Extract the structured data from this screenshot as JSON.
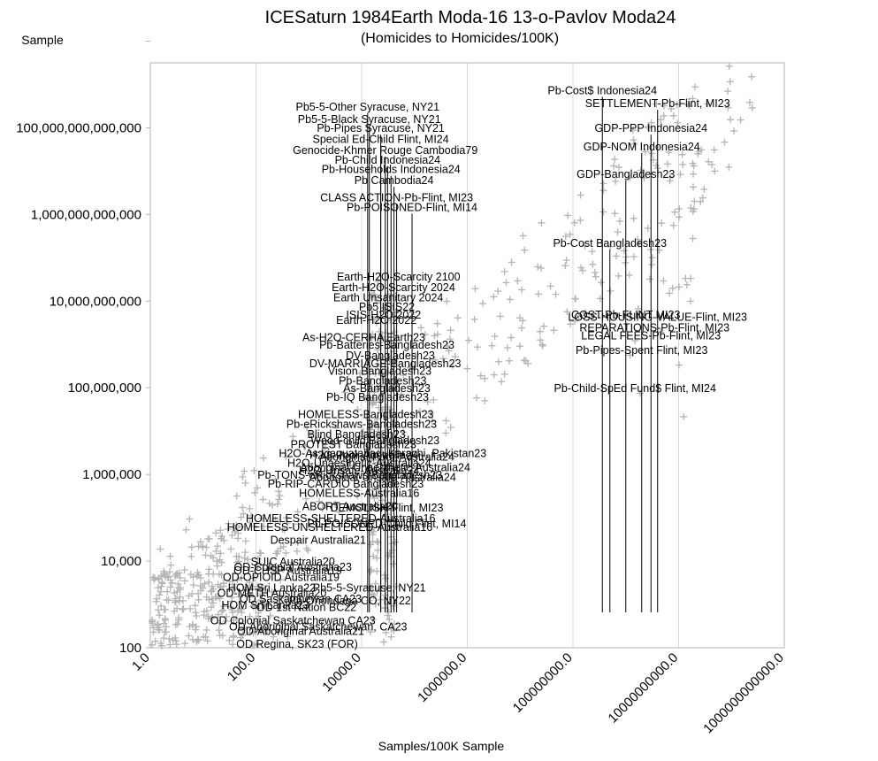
{
  "chart_data": {
    "type": "scatter",
    "title": "ICESaturn 1984Earth Moda-16 13-o-Pavlov Moda24",
    "subtitle": "(Homicides to Homicides/100K)",
    "xlabel": "Samples/100K Sample",
    "ylabel": "Sample",
    "xscale": "log",
    "yscale": "log",
    "xlim": [
      1,
      1000000000000
    ],
    "ylim": [
      100,
      10000000000000000
    ],
    "xticks": [
      1,
      100,
      10000,
      1000000,
      100000000,
      10000000000,
      1000000000000
    ],
    "xtick_labels": [
      "1.0",
      "100.0",
      "10000.0",
      "1000000.0",
      "100000000.0",
      "10000000000.0",
      "1000000000000.0"
    ],
    "yticks": [
      100,
      10000,
      1000000,
      100000000,
      10000000000,
      1000000000000,
      100000000000000,
      10000000000000000
    ],
    "ytick_labels": [
      "100",
      "10,000",
      "1,000,000",
      "100,000,000",
      "10,000,000,000",
      "1,000,000,000,000",
      "100,000,000,000,000",
      ""
    ],
    "marker": "+",
    "marker_color": "#b4b4b4",
    "grid": "vertical",
    "annotations": [
      {
        "text": "Pb5-5-Other Syracuse, NY21",
        "x": 13000,
        "y": 250000000000000
      },
      {
        "text": "Pb5-5-Black Syracuse, NY21",
        "x": 14000,
        "y": 130000000000000
      },
      {
        "text": "Pb-Pipes Syracuse, NY21",
        "x": 23000,
        "y": 80000000000000
      },
      {
        "text": "Special Ed-Child Flint, MI24",
        "x": 23000,
        "y": 45000000000000
      },
      {
        "text": "Genocide-Khmer Rouge Cambodia79",
        "x": 28000,
        "y": 25000000000000
      },
      {
        "text": "Pb-Child Indonesia24",
        "x": 31000,
        "y": 15000000000000
      },
      {
        "text": "Pb-Households Indonesia24",
        "x": 36000,
        "y": 9000000000000
      },
      {
        "text": "Pb Cambodia24",
        "x": 41000,
        "y": 5000000000000
      },
      {
        "text": "CLASS ACTION-Pb-Flint, MI23",
        "x": 46000,
        "y": 2000000000000
      },
      {
        "text": "Pb-POISONED-Flint, MI14",
        "x": 90000,
        "y": 1200000000000
      },
      {
        "text": "Pb-Cost$ Indonesia24",
        "x": 360000000,
        "y": 600000000000000
      },
      {
        "text": "SETTLEMENT-Pb-Flint, MI23",
        "x": 4000000000,
        "y": 300000000000000
      },
      {
        "text": "GDP-PPP Indonesia24",
        "x": 3000000000,
        "y": 80000000000000
      },
      {
        "text": "GDP-NOM Indonesia24",
        "x": 2000000000,
        "y": 30000000000000
      },
      {
        "text": "GDP-Bangladesh23",
        "x": 1000000000,
        "y": 7000000000000
      },
      {
        "text": "Pb-Cost Bangladesh23",
        "x": 500000000,
        "y": 180000000000
      },
      {
        "text": "Earth-H2O-Scarcity 2100",
        "x": 50000,
        "y": 30000000000
      },
      {
        "text": "Earth-H2O-Scarcity 2024",
        "x": 40000,
        "y": 17000000000
      },
      {
        "text": "Earth Unsanitary 2024",
        "x": 32000,
        "y": 10000000000
      },
      {
        "text": "Pb5 ISIS22",
        "x": 30000,
        "y": 6000000000
      },
      {
        "text": "ISIS-H2O 2022",
        "x": 26000,
        "y": 4000000000
      },
      {
        "text": "Earth-H2O 2022",
        "x": 19000,
        "y": 3000000000
      },
      {
        "text": "As-H2O-CERHA Earth23",
        "x": 11000,
        "y": 1200000000
      },
      {
        "text": "COST-Pb-FLINT MI23",
        "x": 1000000000,
        "y": 4000000000
      },
      {
        "text": "LOSS-HOUSING-VALUE-Flint, MI23",
        "x": 4000000000,
        "y": 3500000000
      },
      {
        "text": "REPARATIONS-Pb-Flint, MI23",
        "x": 3500000000,
        "y": 2000000000
      },
      {
        "text": "LEGAL FEES-Pb-Flint, MI23",
        "x": 3000000000,
        "y": 1300000000
      },
      {
        "text": "Pb-Pipes-Spent Flint, MI23",
        "x": 2000000000,
        "y": 600000000
      },
      {
        "text": "Pb-Child-SpEd Fund$ Flint, MI24",
        "x": 1500000000,
        "y": 80000000
      },
      {
        "text": "Pb-Batteries-Bangladesh23",
        "x": 30000,
        "y": 800000000
      },
      {
        "text": "DV-Bangladesh23",
        "x": 35000,
        "y": 450000000
      },
      {
        "text": "DV-MARRIAGE-Bangladesh23",
        "x": 28000,
        "y": 300000000
      },
      {
        "text": "Vision Bangladesh23",
        "x": 22000,
        "y": 200000000
      },
      {
        "text": "Pb-Bangladesh23",
        "x": 25000,
        "y": 120000000
      },
      {
        "text": "As-Bangladesh23",
        "x": 30000,
        "y": 80000000
      },
      {
        "text": "Pb-IQ Bangladesh23",
        "x": 20000,
        "y": 50000000
      },
      {
        "text": "HOMELESS-Bangladesh23",
        "x": 12000,
        "y": 20000000
      },
      {
        "text": "Pb-eRickshaws-Bangladesh23",
        "x": 10000,
        "y": 12000000
      },
      {
        "text": "Blind Bangladesh23",
        "x": 8000,
        "y": 7000000
      },
      {
        "text": "Wood-child Bangladesh23",
        "x": 18000,
        "y": 5000000
      },
      {
        "text": "PROTEST Bangladesh23",
        "x": 7000,
        "y": 4000000
      },
      {
        "text": "H2O-As Liaquatabad, Karachi, Pakistan23",
        "x": 25000,
        "y": 2500000
      },
      {
        "text": "H2O-Poor-Australia24",
        "x": 11000,
        "y": 2300000
      },
      {
        "text": "Aboriginal-Poor-Australia24",
        "x": 30000,
        "y": 2100000
      },
      {
        "text": "H2O-Unaesthetic-Australia24",
        "x": 9000,
        "y": 1500000
      },
      {
        "text": "Aboriginal-Unaesthetic-Australia24",
        "x": 28000,
        "y": 1200000
      },
      {
        "text": "H2O-Unsafe-Australia24",
        "x": 9000,
        "y": 1000000
      },
      {
        "text": "Aboriginal-Unsafe-Australia24",
        "x": 25000,
        "y": 700000
      },
      {
        "text": "Pb-TONS-eRickshaws-Bangladesh23",
        "x": 6000,
        "y": 800000
      },
      {
        "text": "Pb-RIP-CARDIO Bangladesh23",
        "x": 5000,
        "y": 500000
      },
      {
        "text": "HOMELESS-Australia16",
        "x": 9000,
        "y": 300000
      },
      {
        "text": "ABORT Australia20",
        "x": 6000,
        "y": 150000
      },
      {
        "text": "DEMOLISH-Flint, MI23",
        "x": 30000,
        "y": 140000
      },
      {
        "text": "HOMELESS-SHELTERED-Australia16",
        "x": 4000,
        "y": 80000
      },
      {
        "text": "Pb-POISONED-Child Flint, MI14",
        "x": 30000,
        "y": 60000
      },
      {
        "text": "HOMELESS-UNSHELTERED-Australia16",
        "x": 2500,
        "y": 50000
      },
      {
        "text": "Despair Australia21",
        "x": 1500,
        "y": 25000
      },
      {
        "text": "Pb5-5-Syracuse, NY21",
        "x": 14000,
        "y": 2000
      },
      {
        "text": "Pb-Onondaga CO, NY22",
        "x": 6000,
        "y": 1000
      },
      {
        "text": "SUIC Australia20",
        "x": 500,
        "y": 8000
      },
      {
        "text": "OD-Colonial Australia23",
        "x": 500,
        "y": 6000
      },
      {
        "text": "OD-CHSP Australia19",
        "x": 400,
        "y": 5000
      },
      {
        "text": "OD-OPIOID Australia19",
        "x": 300,
        "y": 3500
      },
      {
        "text": "HOM Sri Lanka22",
        "x": 200,
        "y": 2000
      },
      {
        "text": "OD-METH Australia20",
        "x": 200,
        "y": 1500
      },
      {
        "text": "HOM Sri Lanka23",
        "x": 150,
        "y": 800
      },
      {
        "text": "OD Saskatchewan CA23",
        "x": 700,
        "y": 1100
      },
      {
        "text": "OD 1st Nation BC22",
        "x": 900,
        "y": 700
      },
      {
        "text": "OD Colonial Saskatchewan CA23",
        "x": 500,
        "y": 350
      },
      {
        "text": "OD-Aboriginal Saskatchewan, CA23",
        "x": 1500,
        "y": 250
      },
      {
        "text": "OD-Aboriginal Australia21",
        "x": 700,
        "y": 200
      },
      {
        "text": "OD Regina, SK23 (FOR)",
        "x": 600,
        "y": 100
      }
    ]
  }
}
